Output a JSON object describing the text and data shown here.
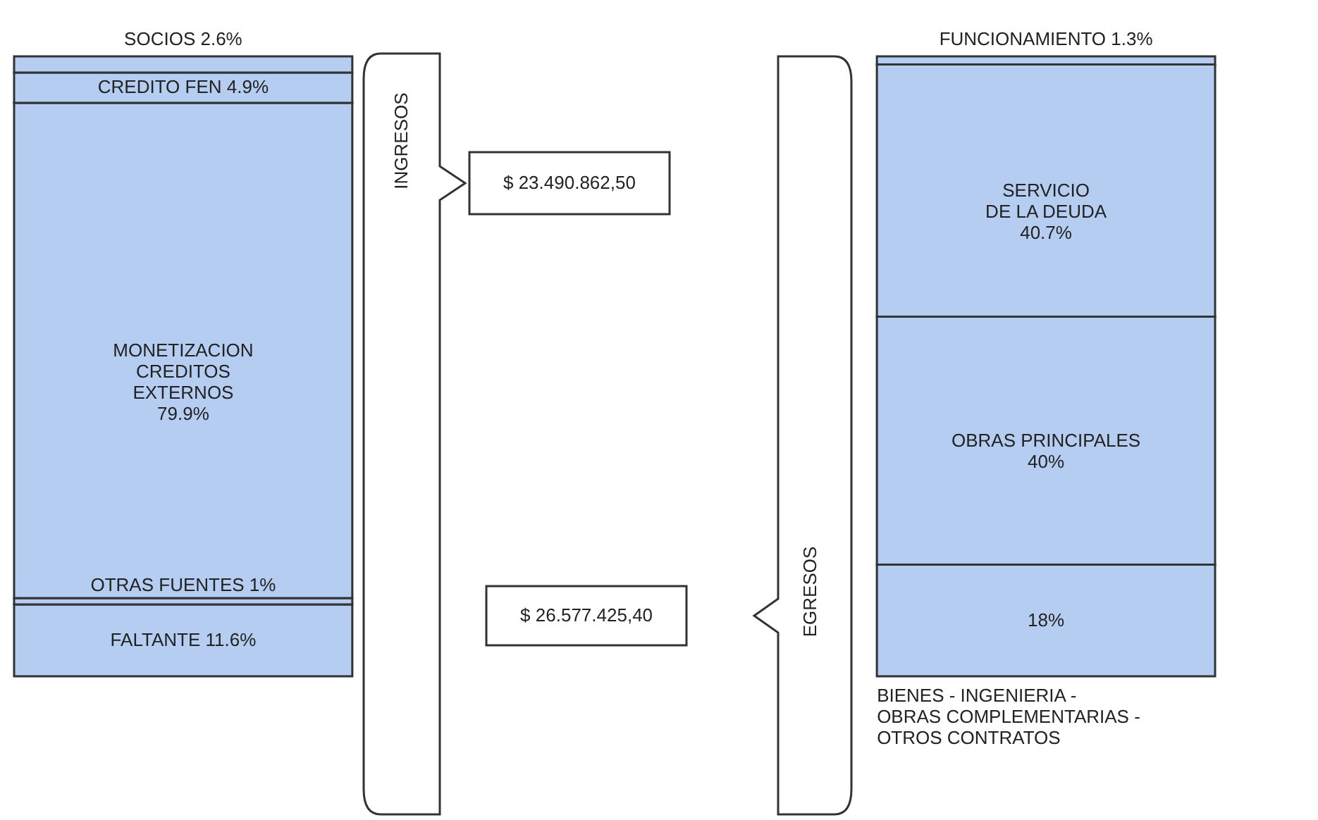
{
  "chart_data": {
    "type": "bar",
    "stacked": true,
    "categories": [
      "INGRESOS",
      "EGRESOS"
    ],
    "annotations": [
      "$ 23.490.862,50",
      "$ 26.577.425,40"
    ],
    "series": [
      {
        "name": "FALTANTE",
        "color": "#b5cdf0",
        "values": [
          11.6,
          null
        ],
        "value_labels": [
          "11.6%",
          null
        ]
      },
      {
        "name": "OTRAS FUENTES",
        "color": "#b5cdf0",
        "values": [
          1,
          null
        ],
        "value_labels": [
          "1%",
          null
        ]
      },
      {
        "name": "MONETIZACION\nCREDITOS\nEXTERNOS",
        "color": "#b5cdf0",
        "values": [
          79.9,
          null
        ],
        "value_labels": [
          "79.9%",
          null
        ]
      },
      {
        "name": "CREDITO FEN",
        "color": "#b5cdf0",
        "values": [
          4.9,
          null
        ],
        "value_labels": [
          "4.9%",
          null
        ]
      },
      {
        "name": "SOCIOS",
        "color": "#b5cdf0",
        "values": [
          2.6,
          null
        ],
        "value_labels": [
          "2.6%",
          null
        ]
      },
      {
        "name": "BIENES - INGENIERIA -\nOBRAS COMPLEMENTARIAS -\nOTROS CONTRATOS",
        "color": "#b5cdf0",
        "values": [
          null,
          18
        ],
        "value_labels": [
          null,
          "18%"
        ]
      },
      {
        "name": "OBRAS PRINCIPALES",
        "color": "#b5cdf0",
        "values": [
          null,
          40
        ],
        "value_labels": [
          null,
          "40%"
        ]
      },
      {
        "name": "SERVICIO\nDE LA DEUDA",
        "color": "#b5cdf0",
        "values": [
          null,
          40.7
        ],
        "value_labels": [
          null,
          "40.7%"
        ]
      },
      {
        "name": "FUNCIONAMIENTO",
        "color": "#b5cdf0",
        "values": [
          null,
          1.3
        ],
        "value_labels": [
          null,
          "1.3%"
        ]
      }
    ]
  }
}
